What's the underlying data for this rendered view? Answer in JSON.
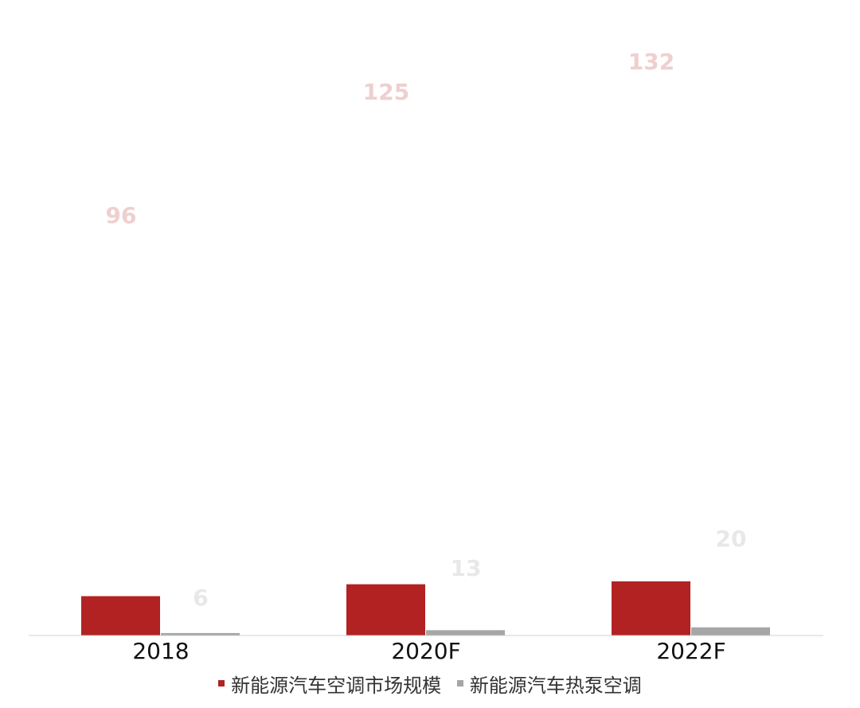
{
  "chart_data": {
    "type": "bar",
    "categories": [
      "2018",
      "2020F",
      "2022F"
    ],
    "series": [
      {
        "name": "新能源汽车空调市场规模",
        "values": [
          96,
          125,
          132
        ],
        "color": "#b22222",
        "label_color": "#efcfcf"
      },
      {
        "name": "新能源汽车热泵空调",
        "values": [
          6,
          13,
          20
        ],
        "color": "#a6a6a6",
        "label_color": "#e8e8e8"
      }
    ],
    "title": "",
    "xlabel": "",
    "ylabel": "",
    "ylim": [
      0,
      1450
    ],
    "grid": false,
    "legend": "bottom",
    "axis_color": "#d0d0d0"
  }
}
